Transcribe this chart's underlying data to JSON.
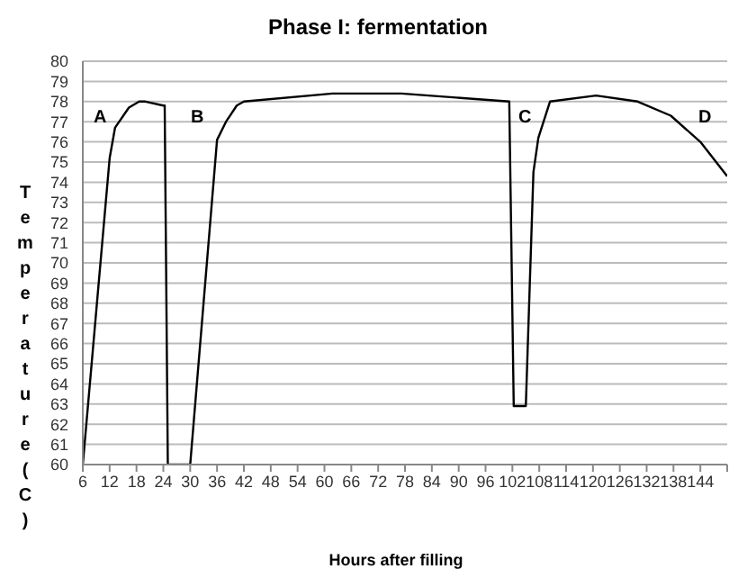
{
  "chart_data": {
    "type": "line",
    "title": "Phase I: fermentation",
    "xlabel": "Hours after filling",
    "ylabel": "Temperature (C)",
    "x": [
      6,
      12,
      13.2,
      16.3,
      18.6,
      20,
      24,
      24.3,
      25,
      30,
      36,
      38,
      40.4,
      42,
      61.8,
      77.2,
      101.3,
      102.3,
      105,
      106.7,
      107.8,
      110.4,
      120.7,
      130,
      137.4,
      144,
      150
    ],
    "series": [
      {
        "color": "#000000",
        "values": [
          60,
          75.2,
          76.7,
          77.7,
          78,
          78,
          77.8,
          77.8,
          60,
          60,
          76.1,
          77,
          77.8,
          78,
          78.4,
          78.4,
          78,
          62.9,
          62.9,
          74.5,
          76.2,
          78,
          78.3,
          78,
          77.3,
          76,
          74.3
        ]
      }
    ],
    "xlim": [
      6,
      150
    ],
    "xticks": [
      6,
      12,
      18,
      24,
      30,
      36,
      42,
      48,
      54,
      60,
      66,
      72,
      78,
      84,
      90,
      96,
      102,
      108,
      114,
      120,
      126,
      132,
      138,
      144,
      {
        "value": 150,
        "label": null
      }
    ],
    "ylim": [
      60,
      80
    ],
    "yticks": [
      60,
      61,
      62,
      63,
      64,
      65,
      66,
      67,
      68,
      69,
      70,
      71,
      72,
      73,
      74,
      75,
      76,
      77,
      78,
      79,
      80
    ],
    "grid": "y",
    "marker": "none",
    "line_style": "solid",
    "legend": false,
    "annotations": [
      "A",
      "B",
      "C",
      "D"
    ]
  }
}
